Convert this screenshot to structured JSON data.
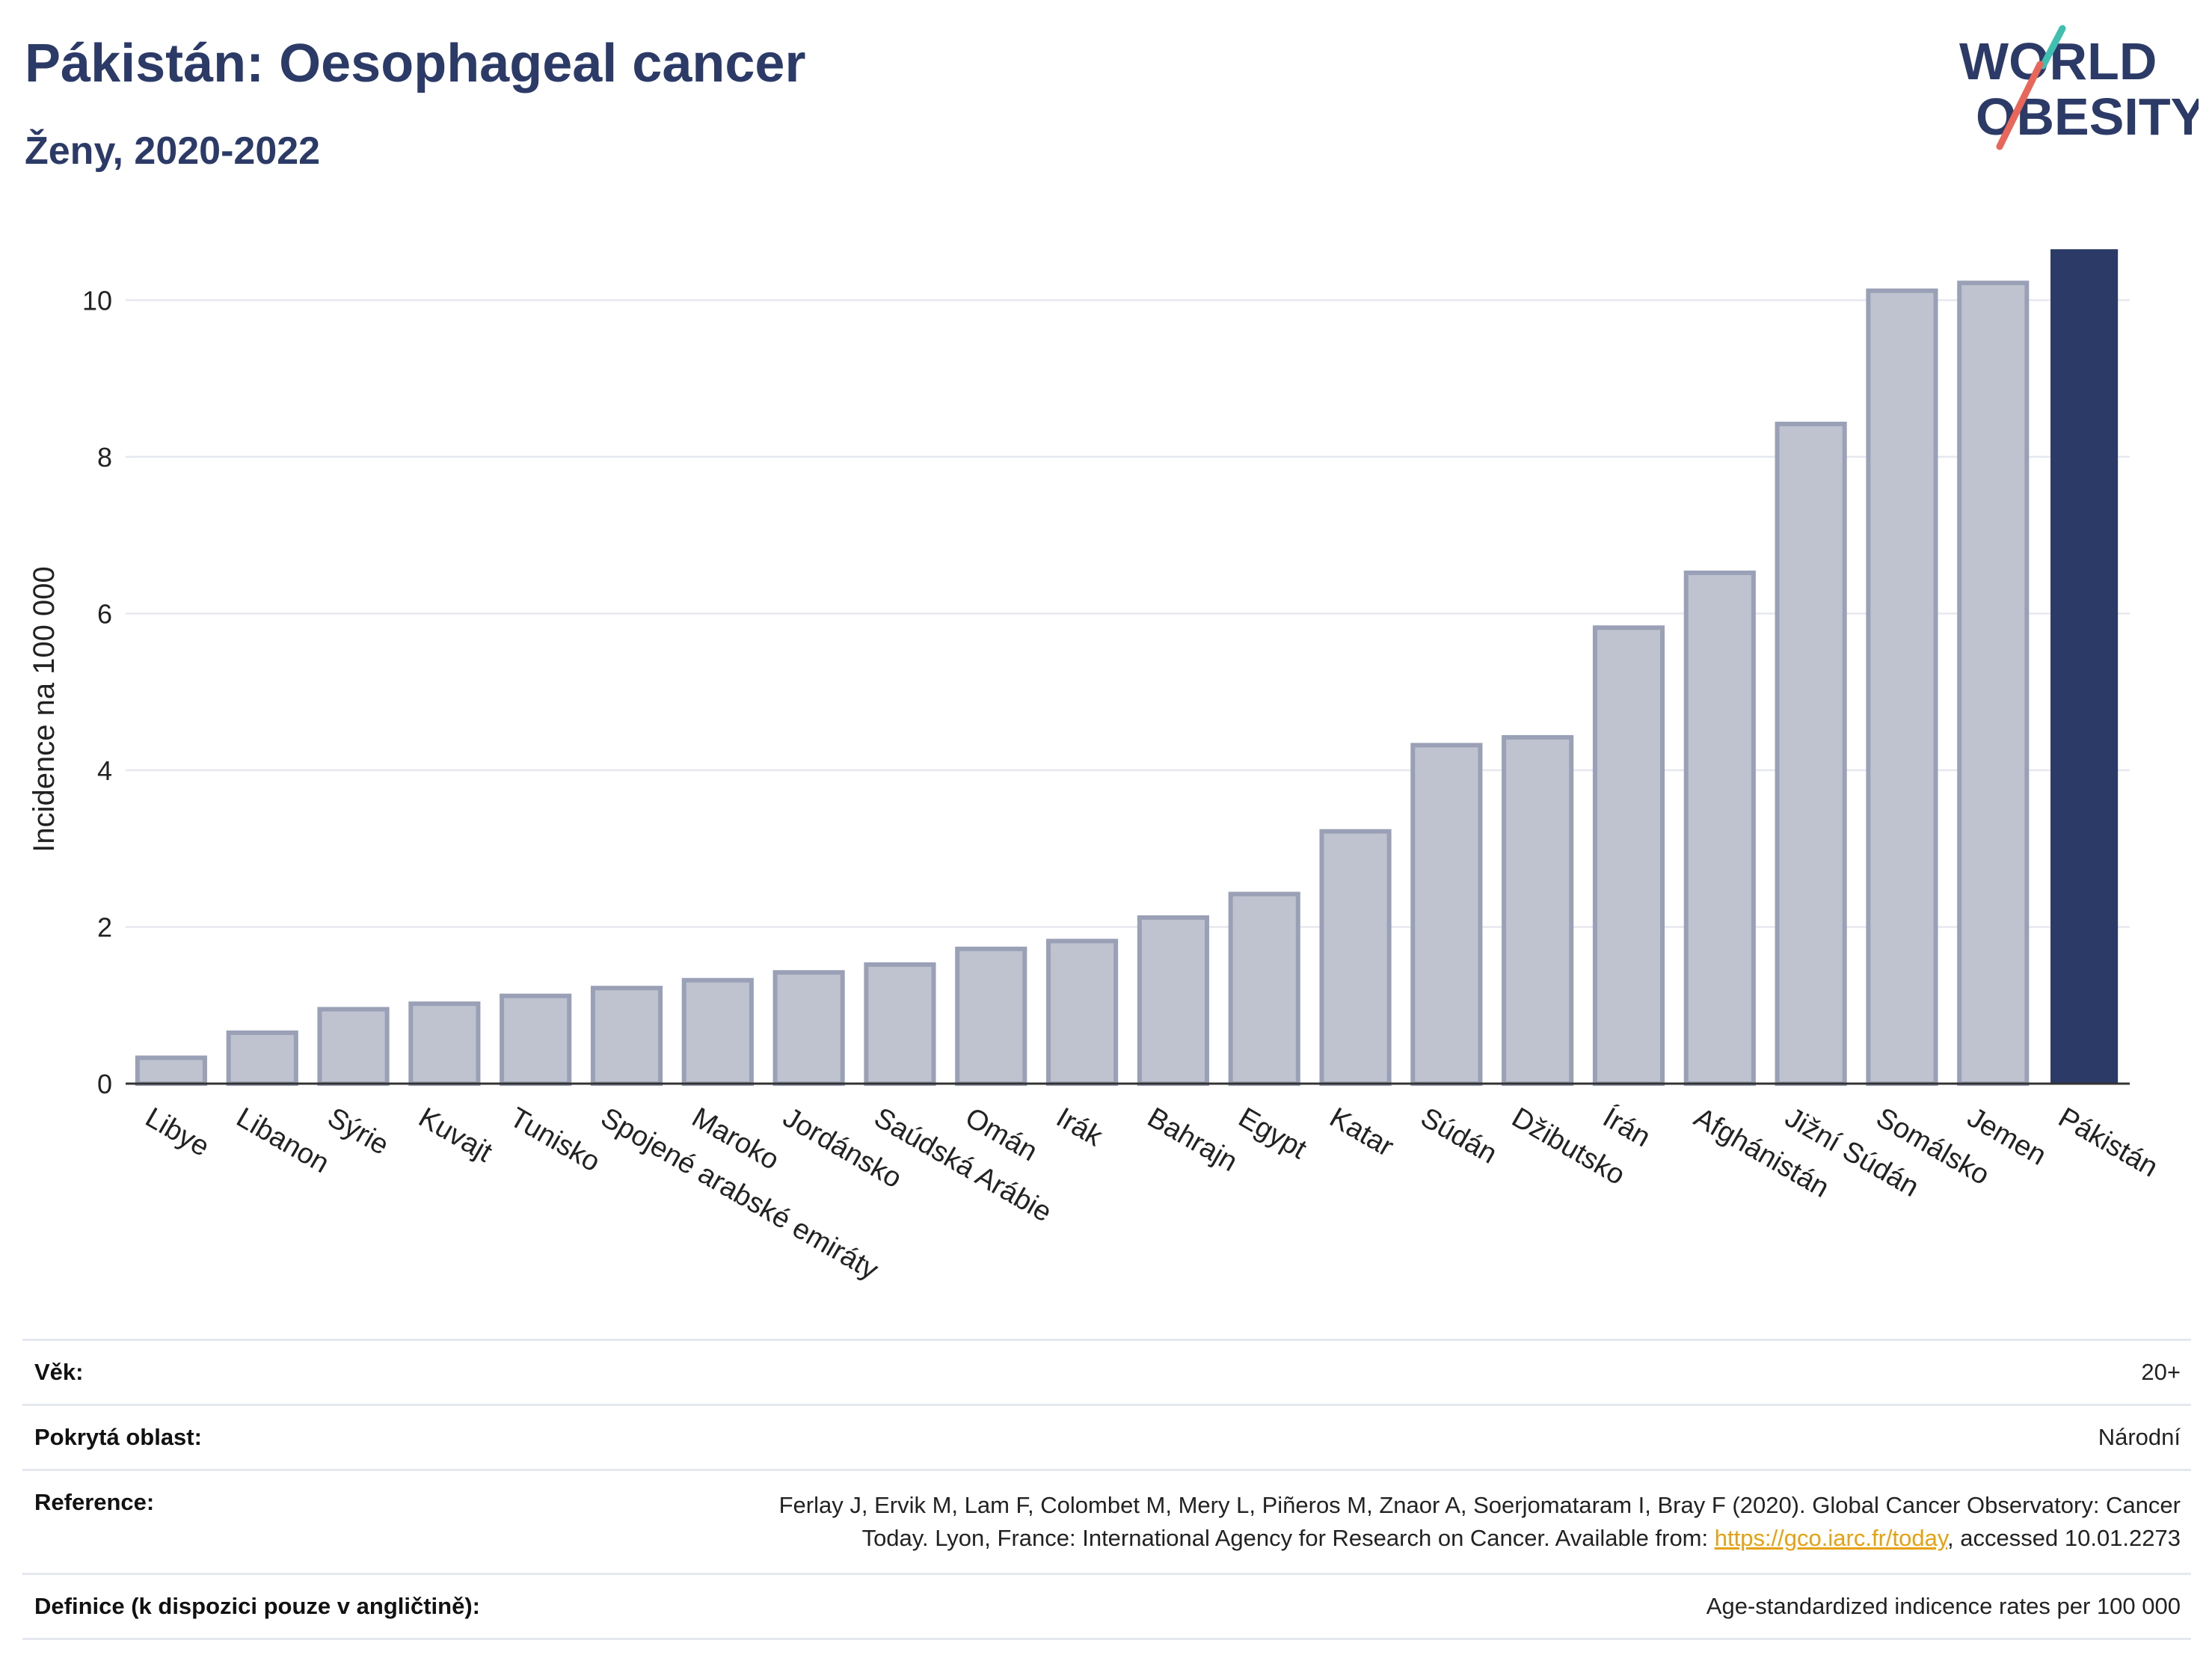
{
  "header": {
    "title": "Pákistán: Oesophageal cancer",
    "subtitle": "Ženy, 2020-2022"
  },
  "logo": {
    "line1": "WORLD",
    "line2": "OBESITY",
    "color_text": "#2b3a67",
    "color_slash_top": "#3fbfb0",
    "color_slash_bottom": "#e8665a"
  },
  "colors": {
    "bar_fill": "#bfc3cf",
    "bar_stroke": "#9aa0b6",
    "highlight": "#2b3a67",
    "grid": "#e6e8ef"
  },
  "chart_data": {
    "type": "bar",
    "ylabel": "Incidence na 100 000",
    "ylim": [
      0,
      10.7
    ],
    "yticks": [
      0,
      2,
      4,
      6,
      8,
      10
    ],
    "grid": true,
    "highlight_category": "Pákistán",
    "categories": [
      "Libye",
      "Libanon",
      "Sýrie",
      "Kuvajt",
      "Tunisko",
      "Spojené arabské emiráty",
      "Maroko",
      "Jordánsko",
      "Saúdská Arábie",
      "Omán",
      "Irák",
      "Bahrajn",
      "Egypt",
      "Katar",
      "Súdán",
      "Džibutsko",
      "Írán",
      "Afghánistán",
      "Jižní Súdán",
      "Somálsko",
      "Jemen",
      "Pákistán"
    ],
    "values": [
      0.33,
      0.65,
      0.95,
      1.02,
      1.12,
      1.22,
      1.32,
      1.42,
      1.52,
      1.72,
      1.82,
      2.12,
      2.42,
      3.22,
      4.32,
      4.42,
      5.82,
      6.52,
      8.42,
      10.12,
      10.22,
      10.65
    ]
  },
  "meta": {
    "rows": [
      {
        "label": "Věk:",
        "value": "20+"
      },
      {
        "label": "Pokrytá oblast:",
        "value": "Národní"
      },
      {
        "label": "Reference:",
        "value_line1": "Ferlay J, Ervik M, Lam F, Colombet M, Mery L, Piñeros M, Znaor A, Soerjomataram I, Bray F (2020). Global Cancer Observatory: Cancer",
        "value_line2_pre": "Today. Lyon, France: International Agency for Research on Cancer. Available from: ",
        "link": "https://gco.iarc.fr/today",
        "value_line2_post": ", accessed 10.01.2273"
      },
      {
        "label": "Definice (k dispozici pouze v angličtině):",
        "value": "Age-standardized indicence rates per 100 000"
      }
    ]
  }
}
